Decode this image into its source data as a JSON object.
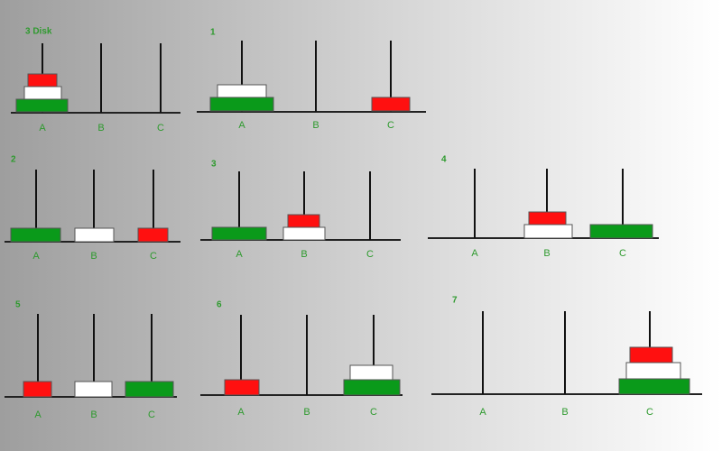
{
  "panels": [
    {
      "label": "3 Disk",
      "pegs": [
        "A",
        "B",
        "C"
      ]
    },
    {
      "label": "1",
      "pegs": [
        "A",
        "B",
        "C"
      ]
    },
    {
      "label": "2",
      "pegs": [
        "A",
        "B",
        "C"
      ]
    },
    {
      "label": "3",
      "pegs": [
        "A",
        "B",
        "C"
      ]
    },
    {
      "label": "4",
      "pegs": [
        "A",
        "B",
        "C"
      ]
    },
    {
      "label": "5",
      "pegs": [
        "A",
        "B",
        "C"
      ]
    },
    {
      "label": "6",
      "pegs": [
        "A",
        "B",
        "C"
      ]
    },
    {
      "label": "7",
      "pegs": [
        "A",
        "B",
        "C"
      ]
    }
  ]
}
